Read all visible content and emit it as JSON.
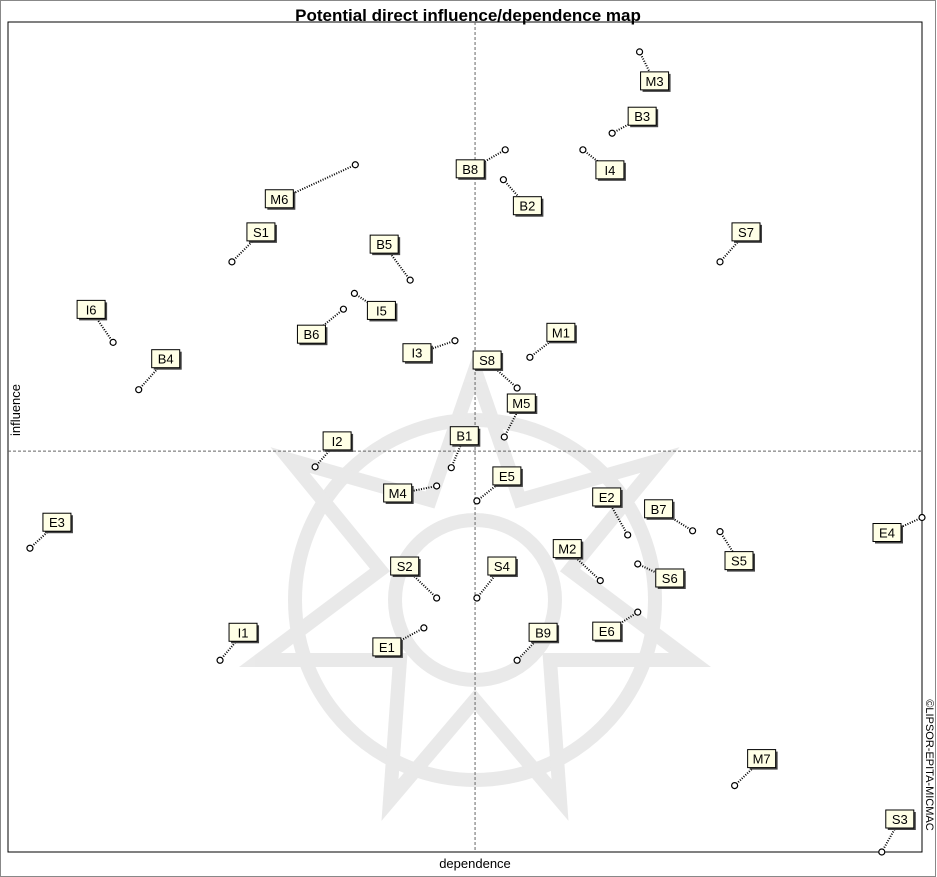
{
  "chart_data": {
    "type": "scatter",
    "title": "Potential direct influence/dependence map",
    "xlabel": "dependence",
    "ylabel": "influence",
    "credit": "©LIPSOR-EPITA-MICMAC",
    "labels": [
      "M3",
      "B3",
      "B8",
      "I4",
      "B2",
      "M6",
      "S1",
      "B5",
      "S7",
      "I5",
      "B6",
      "I6",
      "M1",
      "I3",
      "B4",
      "S8",
      "M5",
      "B1",
      "I2",
      "M4",
      "E5",
      "E2",
      "B7",
      "S5",
      "E4",
      "E3",
      "M2",
      "S6",
      "S2",
      "S4",
      "E6",
      "I1",
      "E1",
      "B9",
      "M7",
      "S3"
    ],
    "x": [
      69.1,
      66.1,
      54.4,
      62.9,
      54.2,
      38.0,
      24.5,
      44.0,
      77.9,
      37.9,
      36.7,
      11.5,
      57.1,
      48.9,
      14.3,
      55.7,
      54.3,
      48.5,
      33.6,
      46.9,
      51.3,
      67.8,
      74.9,
      77.9,
      100.0,
      2.4,
      64.8,
      68.9,
      46.9,
      51.3,
      68.9,
      23.2,
      45.5,
      55.7,
      79.5,
      95.6
    ],
    "y": [
      96.4,
      86.6,
      84.6,
      84.6,
      81.0,
      82.8,
      71.1,
      68.9,
      71.1,
      67.3,
      65.4,
      61.4,
      59.6,
      61.6,
      55.7,
      55.9,
      50.0,
      46.3,
      46.4,
      44.1,
      42.3,
      38.2,
      38.7,
      38.6,
      40.3,
      36.6,
      32.7,
      34.7,
      30.6,
      30.6,
      28.9,
      23.1,
      27.0,
      23.1,
      8.0,
      0.0
    ],
    "xlim": [
      0,
      100
    ],
    "ylim": [
      0,
      100
    ],
    "xcross": 51.1,
    "ycross": 48.3
  }
}
